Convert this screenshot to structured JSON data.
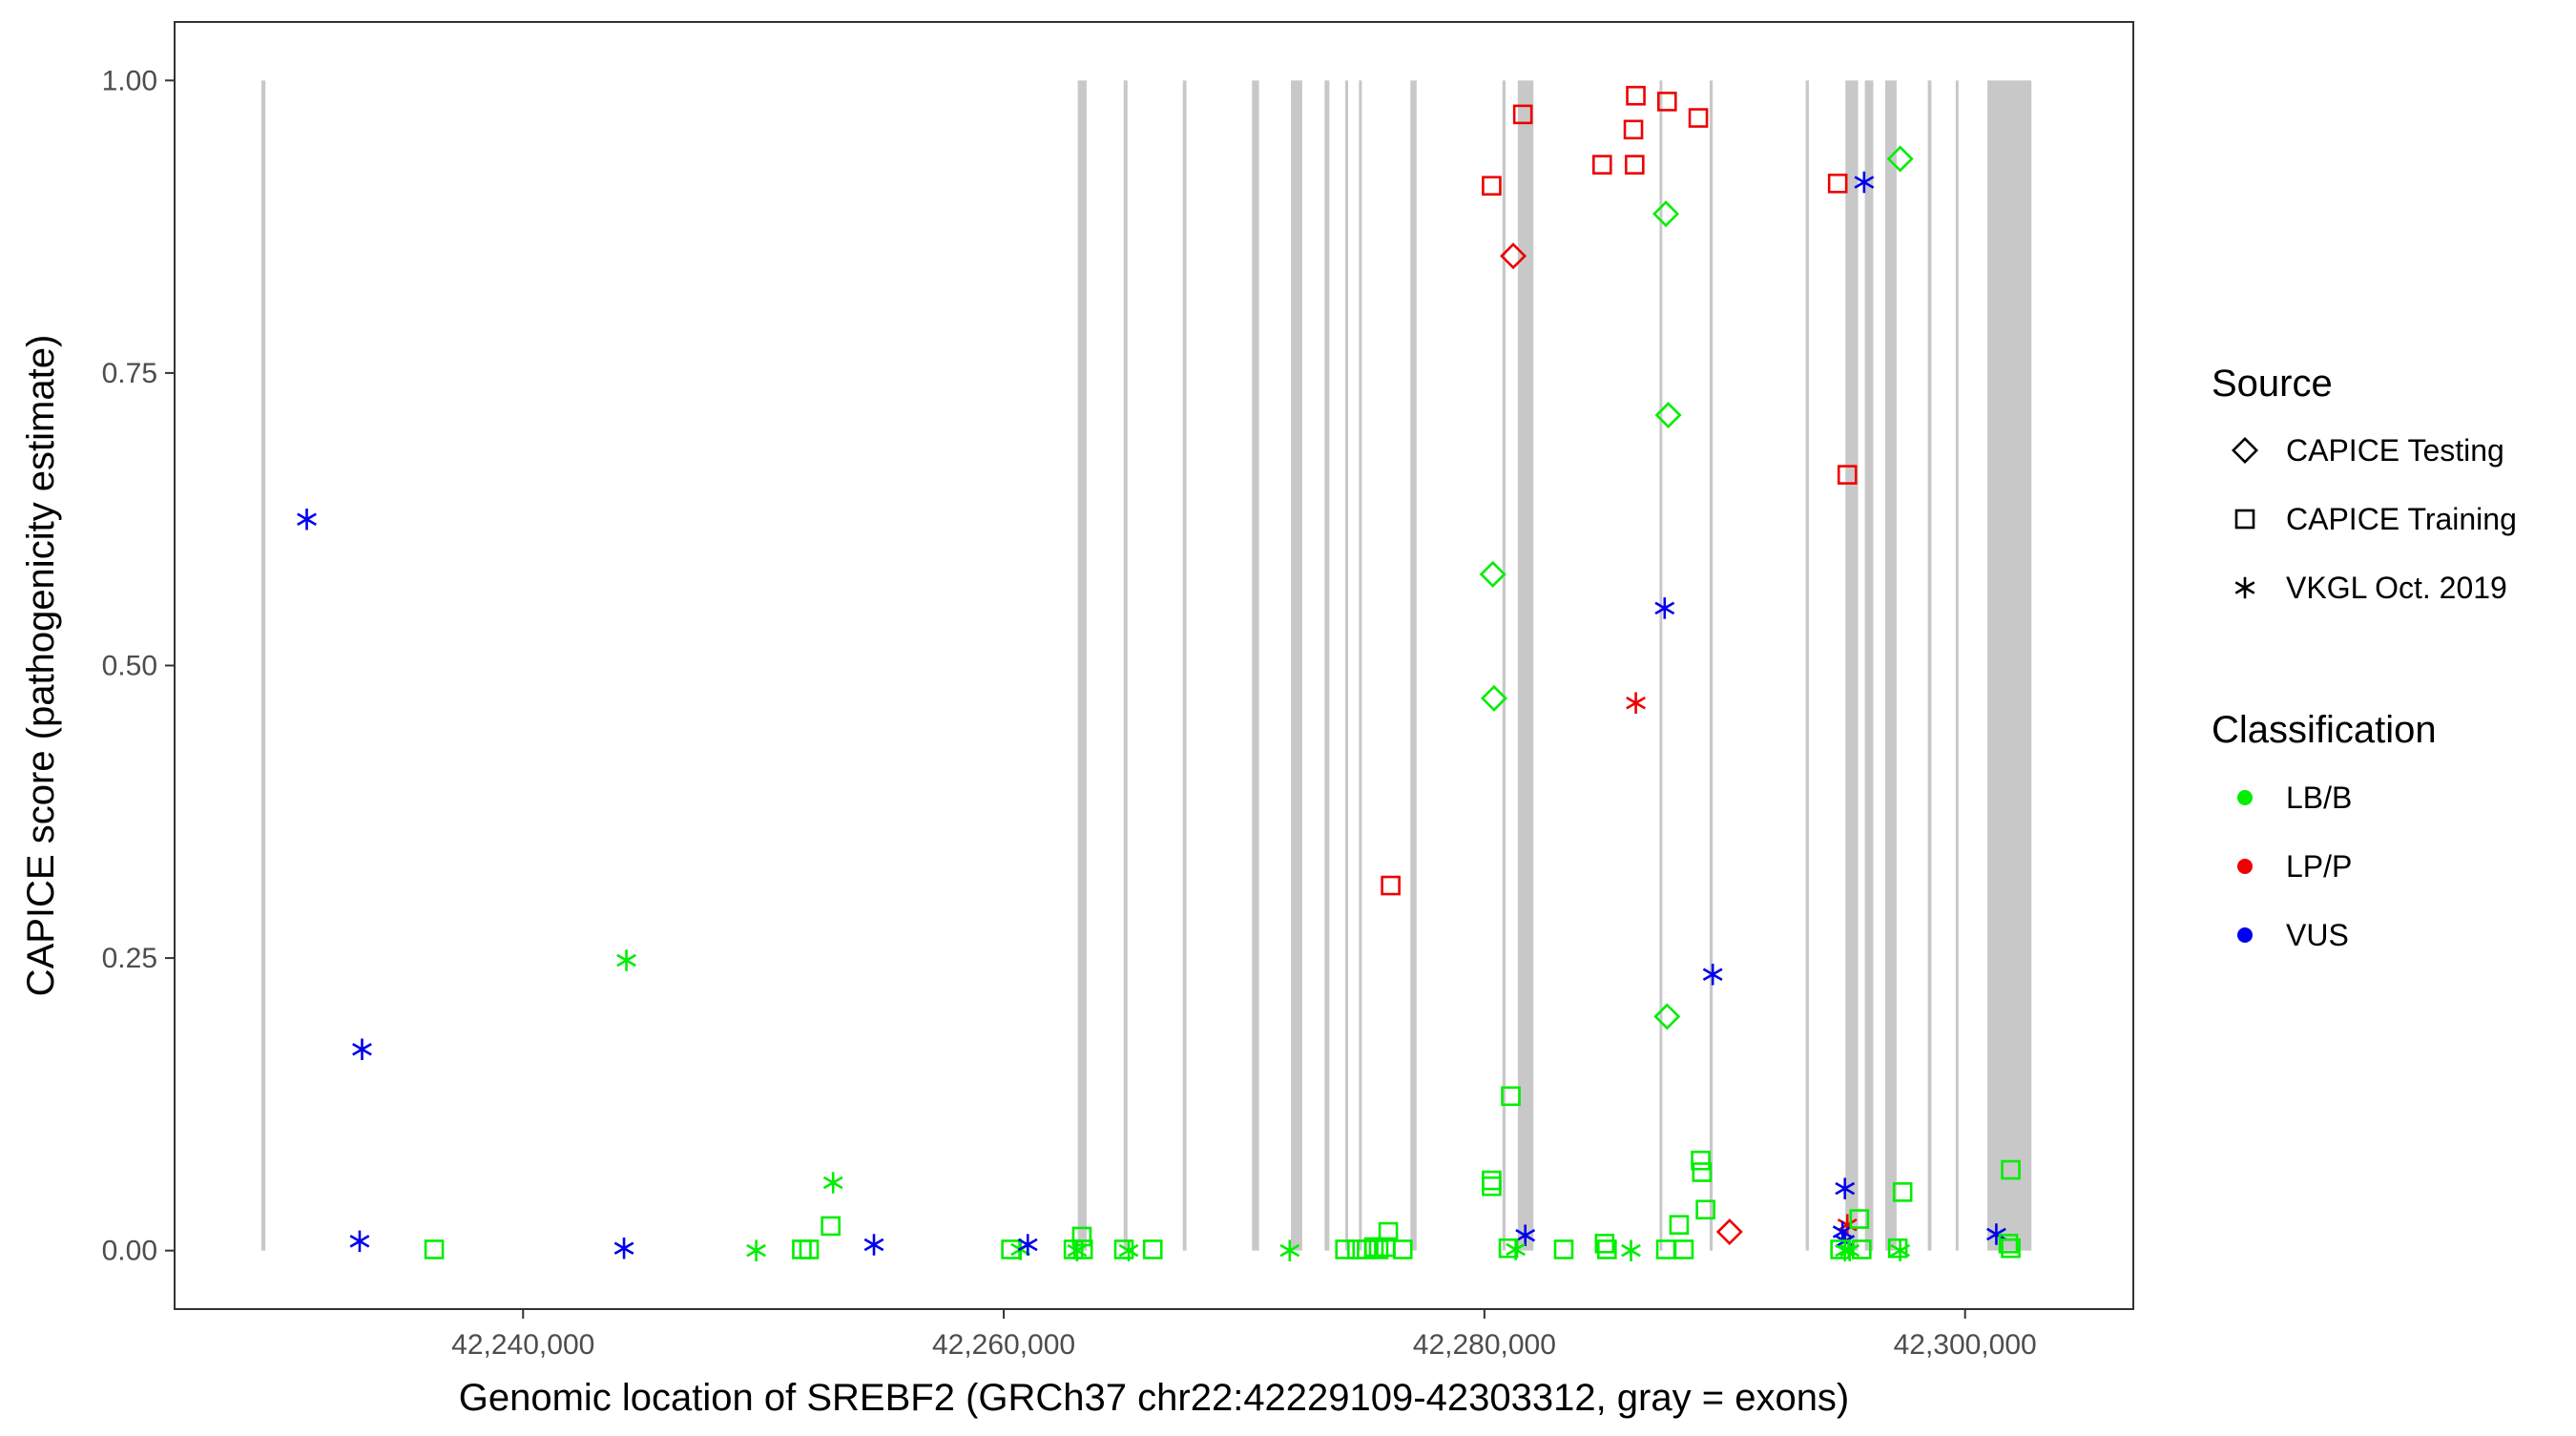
{
  "chart_data": {
    "type": "scatter",
    "xlabel": "Genomic location of SREBF2 (GRCh37 chr22:42229109-42303312, gray = exons)",
    "ylabel": "CAPICE score (pathogenicity estimate)",
    "xlim": [
      42225500,
      42307000
    ],
    "ylim": [
      -0.05,
      1.05
    ],
    "x_ticks": [
      42240000,
      42260000,
      42280000,
      42300000
    ],
    "x_tick_labels": [
      "42,240,000",
      "42,260,000",
      "42,280,000",
      "42,300,000"
    ],
    "y_ticks": [
      0,
      0.25,
      0.5,
      0.75,
      1.0
    ],
    "y_tick_labels": [
      "0.00",
      "0.25",
      "0.50",
      "0.75",
      "1.00"
    ],
    "grid": false,
    "legend_position": "right",
    "exon_color": "#c8c8c8",
    "exons": [
      [
        42229109,
        42229280
      ],
      [
        42263080,
        42263450
      ],
      [
        42264990,
        42265150
      ],
      [
        42267450,
        42267600
      ],
      [
        42270330,
        42270620
      ],
      [
        42271950,
        42272420
      ],
      [
        42273350,
        42273550
      ],
      [
        42274220,
        42274320
      ],
      [
        42274780,
        42274900
      ],
      [
        42276920,
        42277180
      ],
      [
        42280750,
        42280880
      ],
      [
        42281390,
        42282040
      ],
      [
        42287290,
        42287400
      ],
      [
        42289370,
        42289500
      ],
      [
        42293370,
        42293500
      ],
      [
        42295020,
        42295550
      ],
      [
        42295830,
        42296180
      ],
      [
        42296680,
        42297150
      ],
      [
        42298450,
        42298600
      ],
      [
        42299620,
        42299720
      ],
      [
        42300930,
        42302760
      ]
    ],
    "legend_source": {
      "title": "Source",
      "entries": [
        {
          "label": "CAPICE Testing",
          "shape": "diamond"
        },
        {
          "label": "CAPICE Training",
          "shape": "square"
        },
        {
          "label": "VKGL Oct. 2019",
          "shape": "asterisk"
        }
      ]
    },
    "legend_classification": {
      "title": "Classification",
      "entries": [
        {
          "label": "LB/B",
          "color": "#00ee00"
        },
        {
          "label": "LP/P",
          "color": "#ee0000"
        },
        {
          "label": "VUS",
          "color": "#0000ee"
        }
      ]
    },
    "points": [
      {
        "x": 42231000,
        "y": 0.625,
        "s": "asterisk",
        "c": "VUS"
      },
      {
        "x": 42233300,
        "y": 0.172,
        "s": "asterisk",
        "c": "VUS"
      },
      {
        "x": 42233200,
        "y": 0.008,
        "s": "asterisk",
        "c": "VUS"
      },
      {
        "x": 42236300,
        "y": 0.001,
        "s": "square",
        "c": "LB/B"
      },
      {
        "x": 42244300,
        "y": 0.248,
        "s": "asterisk",
        "c": "LB/B"
      },
      {
        "x": 42244200,
        "y": 0.002,
        "s": "asterisk",
        "c": "VUS"
      },
      {
        "x": 42249700,
        "y": 0.0,
        "s": "asterisk",
        "c": "LB/B"
      },
      {
        "x": 42251600,
        "y": 0.001,
        "s": "square",
        "c": "LB/B"
      },
      {
        "x": 42251900,
        "y": 0.001,
        "s": "square",
        "c": "LB/B"
      },
      {
        "x": 42252800,
        "y": 0.021,
        "s": "square",
        "c": "LB/B"
      },
      {
        "x": 42252900,
        "y": 0.058,
        "s": "asterisk",
        "c": "LB/B"
      },
      {
        "x": 42254600,
        "y": 0.005,
        "s": "asterisk",
        "c": "VUS"
      },
      {
        "x": 42260300,
        "y": 0.001,
        "s": "square",
        "c": "LB/B"
      },
      {
        "x": 42260700,
        "y": 0.001,
        "s": "asterisk",
        "c": "LB/B"
      },
      {
        "x": 42261000,
        "y": 0.005,
        "s": "asterisk",
        "c": "VUS"
      },
      {
        "x": 42262900,
        "y": 0.001,
        "s": "square",
        "c": "LB/B"
      },
      {
        "x": 42263050,
        "y": 0.0,
        "s": "asterisk",
        "c": "LB/B"
      },
      {
        "x": 42263250,
        "y": 0.012,
        "s": "square",
        "c": "LB/B"
      },
      {
        "x": 42263300,
        "y": 0.001,
        "s": "square",
        "c": "LB/B"
      },
      {
        "x": 42265000,
        "y": 0.001,
        "s": "square",
        "c": "LB/B"
      },
      {
        "x": 42265200,
        "y": 0.0,
        "s": "asterisk",
        "c": "LB/B"
      },
      {
        "x": 42266200,
        "y": 0.001,
        "s": "square",
        "c": "LB/B"
      },
      {
        "x": 42271900,
        "y": 0.0,
        "s": "asterisk",
        "c": "LB/B"
      },
      {
        "x": 42274200,
        "y": 0.001,
        "s": "square",
        "c": "LB/B"
      },
      {
        "x": 42274700,
        "y": 0.001,
        "s": "square",
        "c": "LB/B"
      },
      {
        "x": 42275100,
        "y": 0.001,
        "s": "square",
        "c": "LB/B"
      },
      {
        "x": 42275400,
        "y": 0.003,
        "s": "square",
        "c": "LB/B"
      },
      {
        "x": 42275600,
        "y": 0.001,
        "s": "square",
        "c": "LB/B"
      },
      {
        "x": 42275900,
        "y": 0.003,
        "s": "square",
        "c": "LB/B"
      },
      {
        "x": 42276000,
        "y": 0.016,
        "s": "square",
        "c": "LB/B"
      },
      {
        "x": 42276100,
        "y": 0.312,
        "s": "square",
        "c": "LP/P"
      },
      {
        "x": 42276600,
        "y": 0.001,
        "s": "square",
        "c": "LB/B"
      },
      {
        "x": 42280300,
        "y": 0.91,
        "s": "square",
        "c": "LP/P"
      },
      {
        "x": 42280350,
        "y": 0.578,
        "s": "diamond",
        "c": "LB/B"
      },
      {
        "x": 42280400,
        "y": 0.472,
        "s": "diamond",
        "c": "LB/B"
      },
      {
        "x": 42280300,
        "y": 0.06,
        "s": "square",
        "c": "LB/B"
      },
      {
        "x": 42280300,
        "y": 0.055,
        "s": "square",
        "c": "LB/B"
      },
      {
        "x": 42281100,
        "y": 0.132,
        "s": "square",
        "c": "LB/B"
      },
      {
        "x": 42281200,
        "y": 0.85,
        "s": "diamond",
        "c": "LP/P"
      },
      {
        "x": 42281600,
        "y": 0.971,
        "s": "square",
        "c": "LP/P"
      },
      {
        "x": 42281700,
        "y": 0.013,
        "s": "asterisk",
        "c": "VUS"
      },
      {
        "x": 42281000,
        "y": 0.002,
        "s": "square",
        "c": "LB/B"
      },
      {
        "x": 42281300,
        "y": 0.001,
        "s": "asterisk",
        "c": "LB/B"
      },
      {
        "x": 42283300,
        "y": 0.001,
        "s": "square",
        "c": "LB/B"
      },
      {
        "x": 42284900,
        "y": 0.928,
        "s": "square",
        "c": "LP/P"
      },
      {
        "x": 42285000,
        "y": 0.006,
        "s": "square",
        "c": "LB/B"
      },
      {
        "x": 42285100,
        "y": 0.001,
        "s": "square",
        "c": "LB/B"
      },
      {
        "x": 42286300,
        "y": 0.987,
        "s": "square",
        "c": "LP/P"
      },
      {
        "x": 42286200,
        "y": 0.958,
        "s": "square",
        "c": "LP/P"
      },
      {
        "x": 42286250,
        "y": 0.928,
        "s": "square",
        "c": "LP/P"
      },
      {
        "x": 42286300,
        "y": 0.468,
        "s": "asterisk",
        "c": "LP/P"
      },
      {
        "x": 42286100,
        "y": 0.0,
        "s": "asterisk",
        "c": "LB/B"
      },
      {
        "x": 42287600,
        "y": 0.982,
        "s": "square",
        "c": "LP/P"
      },
      {
        "x": 42287550,
        "y": 0.886,
        "s": "diamond",
        "c": "LB/B"
      },
      {
        "x": 42287650,
        "y": 0.714,
        "s": "diamond",
        "c": "LB/B"
      },
      {
        "x": 42287500,
        "y": 0.549,
        "s": "asterisk",
        "c": "VUS"
      },
      {
        "x": 42287600,
        "y": 0.2,
        "s": "diamond",
        "c": "LB/B"
      },
      {
        "x": 42287550,
        "y": 0.001,
        "s": "square",
        "c": "LB/B"
      },
      {
        "x": 42288100,
        "y": 0.022,
        "s": "square",
        "c": "LB/B"
      },
      {
        "x": 42288300,
        "y": 0.001,
        "s": "square",
        "c": "LB/B"
      },
      {
        "x": 42288900,
        "y": 0.968,
        "s": "square",
        "c": "LP/P"
      },
      {
        "x": 42289000,
        "y": 0.077,
        "s": "square",
        "c": "LB/B"
      },
      {
        "x": 42289050,
        "y": 0.067,
        "s": "square",
        "c": "LB/B"
      },
      {
        "x": 42289200,
        "y": 0.035,
        "s": "square",
        "c": "LB/B"
      },
      {
        "x": 42289500,
        "y": 0.236,
        "s": "asterisk",
        "c": "VUS"
      },
      {
        "x": 42290200,
        "y": 0.016,
        "s": "diamond",
        "c": "LP/P"
      },
      {
        "x": 42294700,
        "y": 0.912,
        "s": "square",
        "c": "LP/P"
      },
      {
        "x": 42295100,
        "y": 0.663,
        "s": "square",
        "c": "LP/P"
      },
      {
        "x": 42295000,
        "y": 0.053,
        "s": "asterisk",
        "c": "VUS"
      },
      {
        "x": 42295100,
        "y": 0.022,
        "s": "asterisk",
        "c": "LP/P"
      },
      {
        "x": 42294900,
        "y": 0.016,
        "s": "asterisk",
        "c": "VUS"
      },
      {
        "x": 42295000,
        "y": 0.008,
        "s": "asterisk",
        "c": "VUS"
      },
      {
        "x": 42294800,
        "y": 0.001,
        "s": "square",
        "c": "LB/B"
      },
      {
        "x": 42295200,
        "y": 0.0,
        "s": "asterisk",
        "c": "LB/B"
      },
      {
        "x": 42295000,
        "y": 0.0,
        "s": "asterisk",
        "c": "LB/B"
      },
      {
        "x": 42295600,
        "y": 0.027,
        "s": "square",
        "c": "LB/B"
      },
      {
        "x": 42295800,
        "y": 0.913,
        "s": "asterisk",
        "c": "VUS"
      },
      {
        "x": 42295700,
        "y": 0.001,
        "s": "square",
        "c": "LB/B"
      },
      {
        "x": 42297300,
        "y": 0.933,
        "s": "diamond",
        "c": "LB/B"
      },
      {
        "x": 42297400,
        "y": 0.05,
        "s": "square",
        "c": "LB/B"
      },
      {
        "x": 42297200,
        "y": 0.002,
        "s": "square",
        "c": "LB/B"
      },
      {
        "x": 42297300,
        "y": 0.0,
        "s": "asterisk",
        "c": "LB/B"
      },
      {
        "x": 42301300,
        "y": 0.014,
        "s": "asterisk",
        "c": "VUS"
      },
      {
        "x": 42301900,
        "y": 0.069,
        "s": "square",
        "c": "LB/B"
      },
      {
        "x": 42301800,
        "y": 0.006,
        "s": "square",
        "c": "LB/B"
      },
      {
        "x": 42301900,
        "y": 0.002,
        "s": "square",
        "c": "LB/B"
      }
    ]
  }
}
